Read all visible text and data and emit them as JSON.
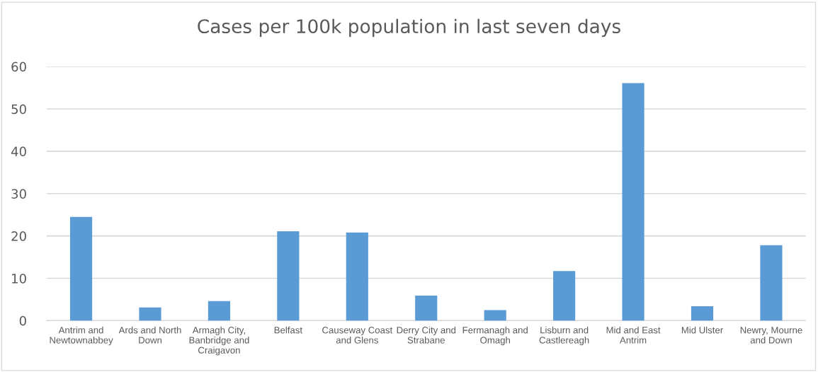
{
  "chart_data": {
    "type": "bar",
    "title": "Cases per 100k population in last seven days",
    "categories": [
      "Antrim and Newtownabbey",
      "Ards and North Down",
      "Armagh City, Banbridge and Craigavon",
      "Belfast",
      "Causeway Coast and Glens",
      "Derry City and Strabane",
      "Fermanagh and Omagh",
      "Lisburn and Castlereagh",
      "Mid and East Antrim",
      "Mid Ulster",
      "Newry, Mourne and Down"
    ],
    "values": [
      24.5,
      3.1,
      4.6,
      21.1,
      20.8,
      5.9,
      2.5,
      11.7,
      56.1,
      3.4,
      17.8
    ],
    "color": "#5b9bd5",
    "ylim": [
      0,
      60
    ],
    "yticks": [
      0,
      10,
      20,
      30,
      40,
      50,
      60
    ],
    "grid": "y"
  }
}
